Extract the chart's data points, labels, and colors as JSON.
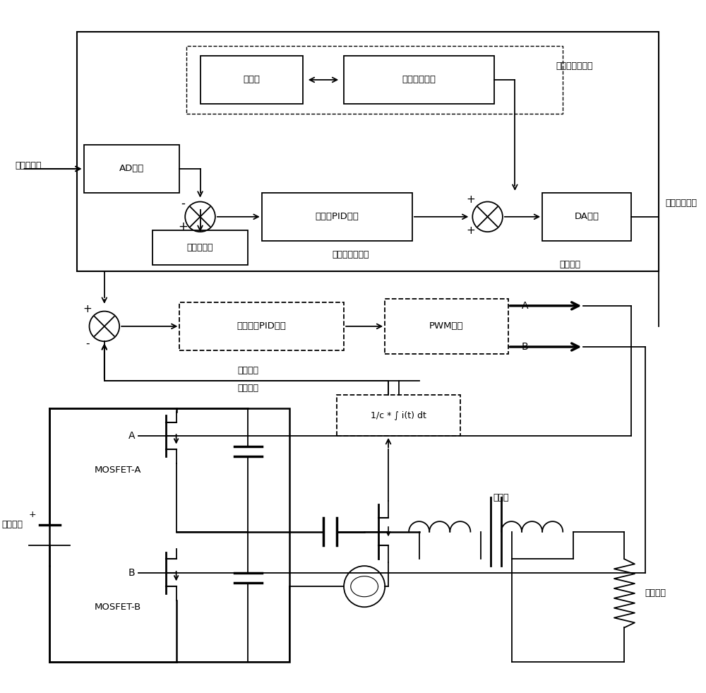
{
  "bg_color": "#ffffff",
  "texts": {
    "guan_dianl_fankai": "管电流反馈",
    "AD_mokuai": "AD模块",
    "guan_dianl_sheding": "管电流设定",
    "cunchuju": "存储器",
    "shujuchuli": "数据处理模块",
    "dengsi_chushi": "灯丝电流初始值",
    "guan_pid": "管电流PID模块",
    "dengsi_piancha": "灯丝电流偏差值",
    "DA_mokuai": "DA模块",
    "dengsi_sheding": "灯丝电流设定",
    "weikongjhi": "微控制器",
    "dengsi_pid": "灯丝电流PID模块",
    "PWM_mokuai": "PWM模块",
    "A_label": "A",
    "B_label": "B",
    "dianli_fankui": "电流反馈",
    "integral_formula": "1/c * ∫ i(t) dt",
    "bianyaqi": "变压器",
    "zhiliumuxian": "直流母线",
    "MOSFET_A": "MOSFET-A",
    "A_gate": "A",
    "MOSFET_B": "MOSFET-B",
    "B_gate": "B",
    "dengsi_fuzai": "灯丝负载"
  }
}
